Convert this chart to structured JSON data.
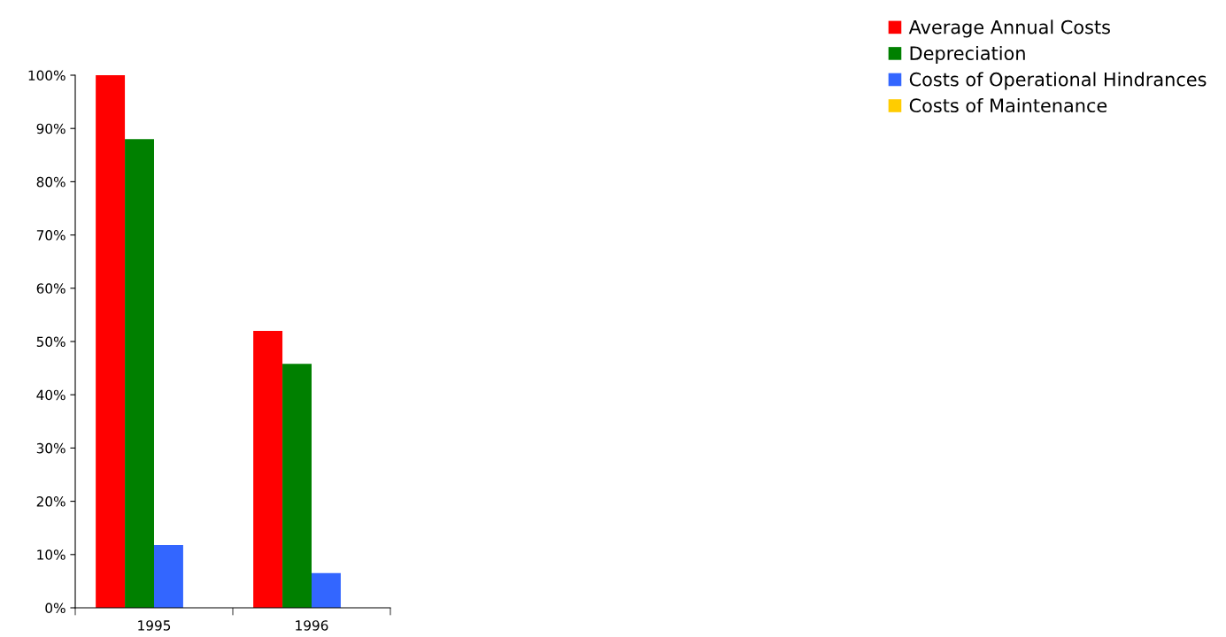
{
  "chart_data": {
    "type": "bar",
    "categories": [
      "1995",
      "1996"
    ],
    "series": [
      {
        "name": "Average Annual Costs",
        "color": "#ff0000",
        "values": [
          100,
          52
        ]
      },
      {
        "name": "Depreciation",
        "color": "#008000",
        "values": [
          88,
          45.8
        ]
      },
      {
        "name": "Costs of Operational Hindrances",
        "color": "#3366ff",
        "values": [
          11.8,
          6.5
        ]
      },
      {
        "name": "Costs of Maintenance",
        "color": "#ffcc00",
        "values": [
          0,
          0
        ]
      }
    ],
    "ylim": [
      0,
      100
    ],
    "yticks": [
      {
        "value": 0,
        "label": "0%"
      },
      {
        "value": 10,
        "label": "10%"
      },
      {
        "value": 20,
        "label": "20%"
      },
      {
        "value": 30,
        "label": "30%"
      },
      {
        "value": 40,
        "label": "40%"
      },
      {
        "value": 50,
        "label": "50%"
      },
      {
        "value": 60,
        "label": "60%"
      },
      {
        "value": 70,
        "label": "70%"
      },
      {
        "value": 80,
        "label": "80%"
      },
      {
        "value": 90,
        "label": "90%"
      },
      {
        "value": 100,
        "label": "100%"
      }
    ],
    "grid": false,
    "legend": "top right"
  }
}
